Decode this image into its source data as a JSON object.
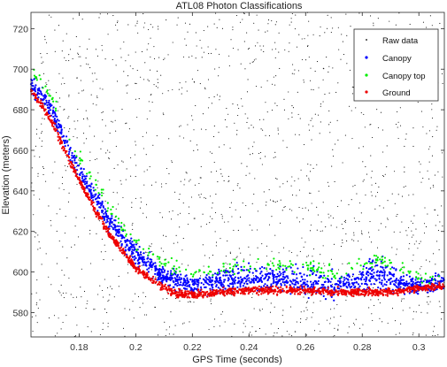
{
  "chart_data": {
    "type": "scatter",
    "title": "ATL08 Photon Classifications",
    "xlabel": "GPS Time (seconds)",
    "ylabel": "Elevation (meters)",
    "xlim": [
      0.163,
      0.309
    ],
    "ylim": [
      568,
      728
    ],
    "x_ticks": [
      {
        "value": 0.18,
        "label": "0.18"
      },
      {
        "value": 0.2,
        "label": "0.2"
      },
      {
        "value": 0.22,
        "label": "0.22"
      },
      {
        "value": 0.24,
        "label": "0.24"
      },
      {
        "value": 0.26,
        "label": "0.26"
      },
      {
        "value": 0.28,
        "label": "0.28"
      },
      {
        "value": 0.3,
        "label": "0.3"
      }
    ],
    "y_ticks": [
      {
        "value": 580,
        "label": "580"
      },
      {
        "value": 600,
        "label": "600"
      },
      {
        "value": 620,
        "label": "620"
      },
      {
        "value": 640,
        "label": "640"
      },
      {
        "value": 660,
        "label": "660"
      },
      {
        "value": 680,
        "label": "680"
      },
      {
        "value": 700,
        "label": "700"
      },
      {
        "value": 720,
        "label": "720"
      }
    ],
    "grid": false,
    "legend_position": "top-right",
    "series": [
      {
        "name": "Raw data",
        "color": "#000000",
        "marker": "dot",
        "description_points": "noise photons uniformly spread over the full extent",
        "approx_count": 1500
      },
      {
        "name": "Canopy",
        "color": "#0000ff",
        "marker": "dot",
        "profile": [
          [
            0.163,
            693
          ],
          [
            0.17,
            680
          ],
          [
            0.18,
            650
          ],
          [
            0.19,
            626
          ],
          [
            0.2,
            609
          ],
          [
            0.21,
            598
          ],
          [
            0.22,
            594
          ],
          [
            0.23,
            595
          ],
          [
            0.24,
            597
          ],
          [
            0.25,
            597
          ],
          [
            0.26,
            595
          ],
          [
            0.27,
            593
          ],
          [
            0.28,
            597
          ],
          [
            0.285,
            601
          ],
          [
            0.29,
            596
          ],
          [
            0.3,
            593
          ],
          [
            0.309,
            595
          ]
        ]
      },
      {
        "name": "Canopy top",
        "color": "#00ee00",
        "marker": "dot",
        "profile": [
          [
            0.163,
            700
          ],
          [
            0.17,
            687
          ],
          [
            0.18,
            657
          ],
          [
            0.19,
            633
          ],
          [
            0.2,
            614
          ],
          [
            0.21,
            604
          ],
          [
            0.22,
            600
          ],
          [
            0.23,
            602
          ],
          [
            0.24,
            604
          ],
          [
            0.25,
            604
          ],
          [
            0.26,
            603
          ],
          [
            0.27,
            598
          ],
          [
            0.28,
            603
          ],
          [
            0.285,
            606
          ],
          [
            0.29,
            604
          ],
          [
            0.3,
            598
          ],
          [
            0.309,
            597
          ]
        ]
      },
      {
        "name": "Ground",
        "color": "#ee0000",
        "marker": "dot",
        "profile": [
          [
            0.163,
            690
          ],
          [
            0.17,
            675
          ],
          [
            0.18,
            645
          ],
          [
            0.19,
            620
          ],
          [
            0.2,
            602
          ],
          [
            0.21,
            592
          ],
          [
            0.215,
            589
          ],
          [
            0.22,
            589
          ],
          [
            0.23,
            590
          ],
          [
            0.24,
            591
          ],
          [
            0.25,
            591
          ],
          [
            0.26,
            591
          ],
          [
            0.27,
            590
          ],
          [
            0.28,
            590
          ],
          [
            0.29,
            590
          ],
          [
            0.3,
            592
          ],
          [
            0.309,
            593
          ]
        ]
      }
    ]
  }
}
